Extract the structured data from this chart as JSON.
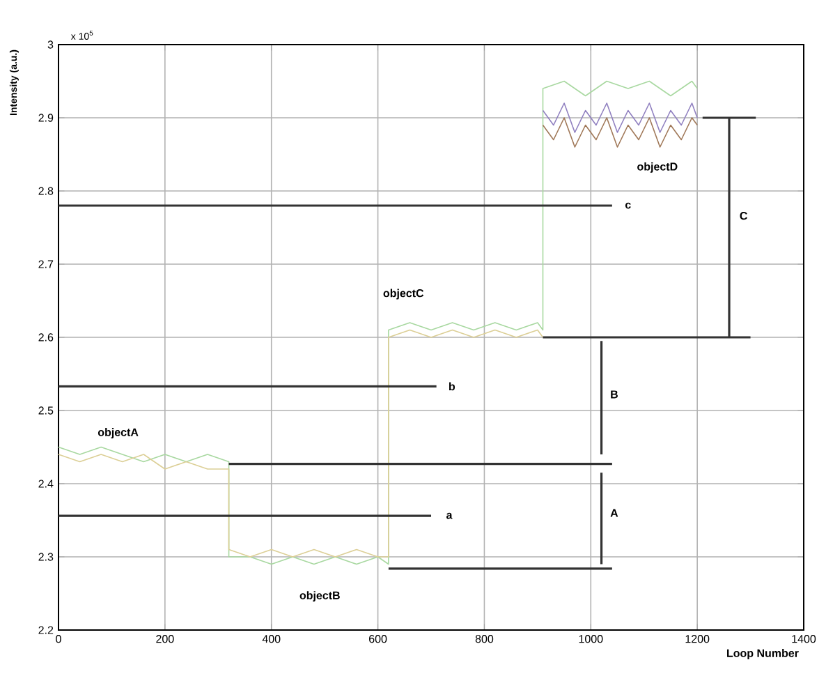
{
  "chart_data": {
    "type": "line",
    "xlabel": "Loop Number",
    "ylabel": "Intensity (a.u.)",
    "xlim": [
      0,
      1400
    ],
    "ylim": [
      2.2,
      3.0
    ],
    "xticks": [
      0,
      200,
      400,
      600,
      800,
      1000,
      1200,
      1400
    ],
    "yticks": [
      2.2,
      2.3,
      2.4,
      2.5,
      2.6,
      2.7,
      2.8,
      2.9,
      {
        "value": 3.0,
        "label": "3"
      }
    ],
    "grid": true,
    "marker": "none",
    "line_style": "solid",
    "series": [
      {
        "color": "#a8d8a0",
        "x": [
          0,
          40,
          80,
          120,
          160,
          200,
          240,
          280,
          320,
          320,
          360,
          400,
          440,
          480,
          520,
          560,
          600,
          620,
          620,
          660,
          700,
          740,
          780,
          820,
          860,
          900,
          910,
          910,
          950,
          990,
          1030,
          1070,
          1110,
          1150,
          1190,
          1200
        ],
        "values": [
          2.45,
          2.44,
          2.45,
          2.44,
          2.43,
          2.44,
          2.43,
          2.44,
          2.43,
          2.3,
          2.3,
          2.29,
          2.3,
          2.29,
          2.3,
          2.29,
          2.3,
          2.29,
          2.61,
          2.62,
          2.61,
          2.62,
          2.61,
          2.62,
          2.61,
          2.62,
          2.61,
          2.94,
          2.95,
          2.93,
          2.95,
          2.94,
          2.95,
          2.93,
          2.95,
          2.94
        ]
      },
      {
        "color": "#dccf96",
        "x": [
          0,
          40,
          80,
          120,
          160,
          200,
          240,
          280,
          320,
          320,
          360,
          400,
          440,
          480,
          520,
          560,
          600,
          620,
          620,
          660,
          700,
          740,
          780,
          820,
          860,
          900,
          910
        ],
        "values": [
          2.44,
          2.43,
          2.44,
          2.43,
          2.44,
          2.42,
          2.43,
          2.42,
          2.42,
          2.31,
          2.3,
          2.31,
          2.3,
          2.31,
          2.3,
          2.31,
          2.3,
          2.3,
          2.6,
          2.61,
          2.6,
          2.61,
          2.6,
          2.61,
          2.6,
          2.61,
          2.6
        ]
      },
      {
        "color": "#9080c0",
        "x": [
          910,
          930,
          950,
          970,
          990,
          1010,
          1030,
          1050,
          1070,
          1090,
          1110,
          1130,
          1150,
          1170,
          1190,
          1200
        ],
        "values": [
          2.91,
          2.89,
          2.92,
          2.88,
          2.91,
          2.89,
          2.92,
          2.88,
          2.91,
          2.89,
          2.92,
          2.88,
          2.91,
          2.89,
          2.92,
          2.9
        ]
      },
      {
        "color": "#a07858",
        "x": [
          910,
          930,
          950,
          970,
          990,
          1010,
          1030,
          1050,
          1070,
          1090,
          1110,
          1130,
          1150,
          1170,
          1190,
          1200
        ],
        "values": [
          2.89,
          2.87,
          2.9,
          2.86,
          2.89,
          2.87,
          2.9,
          2.86,
          2.89,
          2.87,
          2.9,
          2.86,
          2.89,
          2.87,
          2.9,
          2.89
        ]
      },
      {
        "color": "#333333",
        "x": [
          0,
          1040
        ],
        "values": [
          2.78,
          2.78
        ]
      },
      {
        "color": "#333333",
        "x": [
          910,
          1300
        ],
        "values": [
          2.6,
          2.6
        ]
      },
      {
        "color": "#333333",
        "x": [
          1210,
          1310
        ],
        "values": [
          2.9,
          2.9
        ]
      },
      {
        "color": "#333333",
        "x": [
          0,
          710
        ],
        "values": [
          2.533,
          2.533
        ]
      },
      {
        "color": "#333333",
        "x": [
          320,
          1040
        ],
        "values": [
          2.427,
          2.427
        ]
      },
      {
        "color": "#333333",
        "x": [
          0,
          700
        ],
        "values": [
          2.356,
          2.356
        ]
      },
      {
        "color": "#333333",
        "x": [
          620,
          1040
        ],
        "values": [
          2.284,
          2.284
        ]
      },
      {
        "color": "#333333",
        "x": [
          1020,
          1020
        ],
        "values": [
          2.29,
          2.415
        ]
      },
      {
        "color": "#333333",
        "x": [
          1020,
          1020
        ],
        "values": [
          2.44,
          2.595
        ]
      },
      {
        "color": "#333333",
        "x": [
          1260,
          1260
        ],
        "values": [
          2.6,
          2.9
        ]
      }
    ],
    "annotations": [
      "x 10$^{5}$",
      {
        "text": "objectA",
        "x": 112,
        "y": 2.469
      },
      {
        "text": "objectB",
        "x": 491,
        "y": 2.246
      },
      {
        "text": "objectC",
        "x": 648,
        "y": 2.659
      },
      {
        "text": "objectD",
        "x": 1125,
        "y": 2.832
      },
      {
        "text": "A",
        "x": 1044,
        "y": 2.36
      },
      {
        "text": "B",
        "x": 1044,
        "y": 2.522
      },
      {
        "text": "C",
        "x": 1287,
        "y": 2.766
      },
      {
        "text": "c",
        "x": 1070,
        "y": 2.78
      },
      {
        "text": "b",
        "x": 739,
        "y": 2.533
      },
      {
        "text": "a",
        "x": 734,
        "y": 2.356
      }
    ]
  }
}
